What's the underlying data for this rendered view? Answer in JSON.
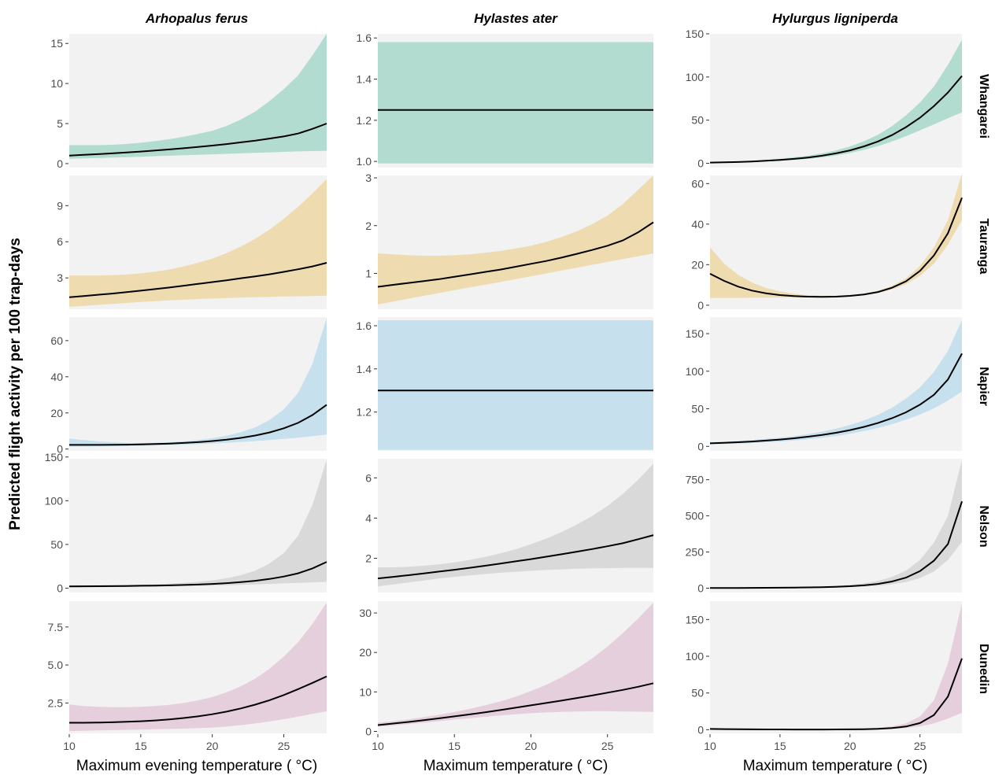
{
  "figure": {
    "ylabel": "Predicted flight activity per  100 trap-days",
    "columns": [
      "Arhopalus ferus",
      "Hylastes ater",
      "Hylurgus ligniperda"
    ],
    "rows": [
      "Whangarei",
      "Tauranga",
      "Napier",
      "Nelson",
      "Dunedin"
    ],
    "xlabels": [
      "Maximum evening temperature ( °C)",
      "Maximum temperature ( °C)",
      "Maximum temperature ( °C)"
    ],
    "row_colors": [
      "#b2dccf",
      "#eedbb0",
      "#c6e0ed",
      "#d9d9d9",
      "#e6cfdc"
    ],
    "panel_background": "#f2f2f2",
    "line_color": "#000000"
  },
  "chart_data": {
    "type": "line",
    "facet": "grid",
    "x": [
      10,
      11,
      12,
      13,
      14,
      15,
      16,
      17,
      18,
      19,
      20,
      21,
      22,
      23,
      24,
      25,
      26,
      27,
      28
    ],
    "xlim": [
      10,
      28
    ],
    "xticks": [
      10,
      15,
      20,
      25
    ],
    "panels": [
      {
        "column": "Arhopalus ferus",
        "row": "Whangarei",
        "ylim": [
          -0.5,
          16.2
        ],
        "yticks": [
          0,
          5,
          10,
          15
        ],
        "fit": [
          1.0,
          1.09,
          1.18,
          1.28,
          1.39,
          1.5,
          1.63,
          1.77,
          1.92,
          2.08,
          2.25,
          2.44,
          2.65,
          2.87,
          3.12,
          3.39,
          3.75,
          4.33,
          5.0
        ],
        "lower": [
          0.6,
          0.65,
          0.7,
          0.75,
          0.8,
          0.86,
          0.92,
          0.98,
          1.05,
          1.1,
          1.16,
          1.22,
          1.28,
          1.34,
          1.4,
          1.46,
          1.52,
          1.56,
          1.6
        ],
        "upper": [
          2.3,
          2.3,
          2.3,
          2.35,
          2.45,
          2.6,
          2.8,
          3.05,
          3.35,
          3.7,
          4.1,
          4.7,
          5.5,
          6.5,
          7.8,
          9.3,
          11.0,
          13.5,
          16.2
        ]
      },
      {
        "column": "Hylastes ater",
        "row": "Whangarei",
        "ylim": [
          0.97,
          1.62
        ],
        "yticks": [
          1.0,
          1.2,
          1.4,
          1.6
        ],
        "fit": [
          1.25,
          1.25,
          1.25,
          1.25,
          1.25,
          1.25,
          1.25,
          1.25,
          1.25,
          1.25,
          1.25,
          1.25,
          1.25,
          1.25,
          1.25,
          1.25,
          1.25,
          1.25,
          1.25
        ],
        "lower": [
          0.99,
          0.99,
          0.99,
          0.99,
          0.99,
          0.99,
          0.99,
          0.99,
          0.99,
          0.99,
          0.99,
          0.99,
          0.99,
          0.99,
          0.99,
          0.99,
          0.99,
          0.99,
          0.99
        ],
        "upper": [
          1.58,
          1.58,
          1.58,
          1.58,
          1.58,
          1.58,
          1.58,
          1.58,
          1.58,
          1.58,
          1.58,
          1.58,
          1.58,
          1.58,
          1.58,
          1.58,
          1.58,
          1.58,
          1.58
        ]
      },
      {
        "column": "Hylurgus ligniperda",
        "row": "Whangarei",
        "ylim": [
          -5,
          150
        ],
        "yticks": [
          0,
          50,
          100,
          150
        ],
        "fit": [
          0.8,
          1.1,
          1.5,
          2.1,
          2.9,
          3.9,
          5.1,
          6.7,
          8.8,
          11.5,
          15.0,
          19.6,
          25.3,
          32.7,
          41.9,
          52.8,
          66.2,
          82.0,
          101.2
        ],
        "lower": [
          0.5,
          0.7,
          1.0,
          1.4,
          2.0,
          2.8,
          3.8,
          5.1,
          6.8,
          9.0,
          11.9,
          15.5,
          19.9,
          25.2,
          31.4,
          38.2,
          45.1,
          52.2,
          59.0
        ],
        "upper": [
          1.2,
          1.6,
          2.2,
          3.0,
          4.0,
          5.3,
          6.9,
          8.9,
          11.5,
          15.0,
          19.5,
          25.5,
          33.0,
          43.0,
          55.5,
          70.5,
          89.0,
          114.0,
          143.0
        ]
      },
      {
        "column": "Arhopalus ferus",
        "row": "Tauranga",
        "ylim": [
          0.4,
          11.5
        ],
        "yticks": [
          3,
          6,
          9
        ],
        "fit": [
          1.4,
          1.5,
          1.6,
          1.7,
          1.82,
          1.94,
          2.07,
          2.2,
          2.35,
          2.5,
          2.65,
          2.8,
          2.97,
          3.13,
          3.3,
          3.5,
          3.72,
          3.95,
          4.25
        ],
        "lower": [
          0.6,
          0.68,
          0.76,
          0.84,
          0.92,
          1.0,
          1.07,
          1.13,
          1.19,
          1.24,
          1.29,
          1.33,
          1.37,
          1.4,
          1.43,
          1.46,
          1.48,
          1.5,
          1.52
        ],
        "upper": [
          3.2,
          3.2,
          3.2,
          3.22,
          3.28,
          3.38,
          3.52,
          3.7,
          3.95,
          4.25,
          4.6,
          5.05,
          5.6,
          6.25,
          7.0,
          7.9,
          8.9,
          10.0,
          11.2
        ]
      },
      {
        "column": "Hylastes ater",
        "row": "Tauranga",
        "ylim": [
          0.25,
          3.05
        ],
        "yticks": [
          1,
          2,
          3
        ],
        "fit": [
          0.72,
          0.76,
          0.8,
          0.84,
          0.88,
          0.93,
          0.98,
          1.03,
          1.08,
          1.14,
          1.2,
          1.26,
          1.33,
          1.41,
          1.49,
          1.58,
          1.69,
          1.86,
          2.07
        ],
        "lower": [
          0.35,
          0.41,
          0.47,
          0.53,
          0.59,
          0.65,
          0.71,
          0.76,
          0.82,
          0.88,
          0.94,
          1.0,
          1.06,
          1.12,
          1.18,
          1.24,
          1.3,
          1.36,
          1.42
        ],
        "upper": [
          1.42,
          1.4,
          1.38,
          1.37,
          1.37,
          1.38,
          1.4,
          1.43,
          1.47,
          1.52,
          1.58,
          1.66,
          1.76,
          1.88,
          2.03,
          2.21,
          2.45,
          2.75,
          3.05
        ]
      },
      {
        "column": "Hylurgus ligniperda",
        "row": "Tauranga",
        "ylim": [
          -2,
          64
        ],
        "yticks": [
          0,
          20,
          40,
          60
        ],
        "fit": [
          15.5,
          12.0,
          9.2,
          7.2,
          5.9,
          5.0,
          4.5,
          4.2,
          4.1,
          4.2,
          4.6,
          5.3,
          6.5,
          8.6,
          11.8,
          16.9,
          24.5,
          35.5,
          53.0
        ],
        "lower": [
          3.5,
          3.6,
          3.6,
          3.7,
          3.7,
          3.8,
          3.8,
          3.8,
          3.8,
          4.0,
          4.3,
          5.0,
          6.0,
          7.8,
          10.3,
          14.5,
          20.5,
          30.0,
          42.0
        ],
        "upper": [
          28.5,
          20.5,
          15.0,
          11.2,
          8.5,
          6.8,
          5.6,
          4.9,
          4.6,
          4.6,
          5.0,
          5.8,
          7.1,
          9.5,
          13.3,
          19.3,
          28.5,
          42.0,
          65.0
        ]
      },
      {
        "column": "Arhopalus ferus",
        "row": "Napier",
        "ylim": [
          -1,
          73
        ],
        "yticks": [
          0,
          20,
          40,
          60
        ],
        "fit": [
          2.3,
          2.3,
          2.3,
          2.35,
          2.45,
          2.6,
          2.8,
          3.05,
          3.4,
          3.85,
          4.45,
          5.2,
          6.2,
          7.5,
          9.2,
          11.5,
          14.5,
          18.8,
          24.5
        ],
        "lower": [
          1.3,
          1.4,
          1.5,
          1.6,
          1.7,
          1.85,
          2.0,
          2.2,
          2.45,
          2.75,
          3.1,
          3.5,
          3.95,
          4.45,
          5.0,
          5.6,
          6.3,
          7.1,
          8.0
        ],
        "upper": [
          5.8,
          5.0,
          4.3,
          3.8,
          3.5,
          3.4,
          3.5,
          3.8,
          4.3,
          5.0,
          6.0,
          7.4,
          9.3,
          12.0,
          16.0,
          22.0,
          31.0,
          47.0,
          72.5
        ]
      },
      {
        "column": "Hylastes ater",
        "row": "Napier",
        "ylim": [
          1.02,
          1.64
        ],
        "yticks": [
          1.2,
          1.4,
          1.6
        ],
        "fit": [
          1.3,
          1.3,
          1.3,
          1.3,
          1.3,
          1.3,
          1.3,
          1.3,
          1.3,
          1.3,
          1.3,
          1.3,
          1.3,
          1.3,
          1.3,
          1.3,
          1.3,
          1.3,
          1.3
        ],
        "lower": [
          1.025,
          1.025,
          1.025,
          1.025,
          1.025,
          1.025,
          1.025,
          1.025,
          1.025,
          1.025,
          1.025,
          1.025,
          1.025,
          1.025,
          1.025,
          1.025,
          1.025,
          1.025,
          1.025
        ],
        "upper": [
          1.625,
          1.625,
          1.625,
          1.625,
          1.625,
          1.625,
          1.625,
          1.625,
          1.625,
          1.625,
          1.625,
          1.625,
          1.625,
          1.625,
          1.625,
          1.625,
          1.625,
          1.625,
          1.625
        ]
      },
      {
        "column": "Hylurgus ligniperda",
        "row": "Napier",
        "ylim": [
          -6,
          172
        ],
        "yticks": [
          0,
          50,
          100,
          150
        ],
        "fit": [
          4.0,
          4.7,
          5.5,
          6.5,
          7.7,
          9.1,
          10.8,
          12.8,
          15.2,
          18.1,
          21.6,
          25.9,
          31.1,
          37.5,
          45.3,
          55.5,
          68.5,
          89.0,
          123.5
        ],
        "lower": [
          2.6,
          3.1,
          3.7,
          4.5,
          5.4,
          6.5,
          7.8,
          9.4,
          11.4,
          13.8,
          16.8,
          20.3,
          24.5,
          29.5,
          35.5,
          42.5,
          50.5,
          61.0,
          73.0
        ],
        "upper": [
          5.5,
          6.3,
          7.3,
          8.5,
          9.9,
          11.6,
          13.7,
          16.3,
          19.5,
          23.5,
          28.5,
          34.5,
          42.0,
          51.5,
          63.5,
          78.5,
          99.0,
          127.0,
          168.0
        ]
      },
      {
        "column": "Arhopalus ferus",
        "row": "Nelson",
        "ylim": [
          -5,
          148
        ],
        "yticks": [
          0,
          50,
          100,
          150
        ],
        "fit": [
          2.0,
          2.1,
          2.2,
          2.3,
          2.5,
          2.7,
          2.9,
          3.2,
          3.6,
          4.1,
          4.8,
          5.7,
          6.9,
          8.4,
          10.5,
          13.3,
          17.0,
          22.5,
          30.0
        ],
        "lower": [
          1.0,
          1.1,
          1.2,
          1.3,
          1.45,
          1.6,
          1.8,
          2.0,
          2.25,
          2.55,
          2.9,
          3.3,
          3.75,
          4.25,
          4.8,
          5.4,
          6.0,
          6.6,
          7.2
        ],
        "upper": [
          3.5,
          3.4,
          3.4,
          3.5,
          3.7,
          4.0,
          4.5,
          5.1,
          6.0,
          7.2,
          8.9,
          11.3,
          14.8,
          20.0,
          28.0,
          40.0,
          60.0,
          95.0,
          147.0
        ]
      },
      {
        "column": "Hylastes ater",
        "row": "Nelson",
        "ylim": [
          0.3,
          6.95
        ],
        "yticks": [
          2,
          4,
          6
        ],
        "fit": [
          1.0,
          1.08,
          1.16,
          1.25,
          1.34,
          1.43,
          1.53,
          1.63,
          1.74,
          1.85,
          1.96,
          2.08,
          2.2,
          2.33,
          2.46,
          2.6,
          2.75,
          2.95,
          3.15
        ],
        "lower": [
          0.6,
          0.7,
          0.8,
          0.9,
          1.0,
          1.08,
          1.15,
          1.22,
          1.28,
          1.33,
          1.38,
          1.42,
          1.45,
          1.48,
          1.5,
          1.51,
          1.52,
          1.52,
          1.52
        ],
        "upper": [
          1.55,
          1.55,
          1.58,
          1.63,
          1.7,
          1.8,
          1.92,
          2.07,
          2.25,
          2.45,
          2.7,
          2.98,
          3.3,
          3.68,
          4.1,
          4.6,
          5.2,
          5.9,
          6.7
        ]
      },
      {
        "column": "Hylurgus ligniperda",
        "row": "Nelson",
        "ylim": [
          -30,
          895
        ],
        "yticks": [
          0,
          250,
          500,
          750
        ],
        "fit": [
          1.0,
          1.2,
          1.5,
          1.9,
          2.4,
          3.1,
          4.0,
          5.3,
          7.1,
          9.7,
          13.5,
          19.5,
          29.5,
          46.0,
          73.0,
          118.0,
          190.0,
          305.0,
          600.0
        ],
        "lower": [
          0.5,
          0.6,
          0.8,
          1.0,
          1.3,
          1.7,
          2.2,
          3.0,
          4.1,
          5.7,
          8.0,
          11.5,
          17.0,
          26.5,
          42.0,
          70.0,
          115.0,
          195.0,
          320.0
        ],
        "upper": [
          2.0,
          2.4,
          2.9,
          3.6,
          4.5,
          5.7,
          7.3,
          9.5,
          12.5,
          17.0,
          23.5,
          33.5,
          50.0,
          77.0,
          122.0,
          195.0,
          315.0,
          500.0,
          885.0
        ]
      },
      {
        "column": "Arhopalus ferus",
        "row": "Dunedin",
        "ylim": [
          0.5,
          9.2
        ],
        "yticks": [
          2.5,
          5.0,
          7.5
        ],
        "fit": [
          1.2,
          1.2,
          1.21,
          1.23,
          1.26,
          1.3,
          1.35,
          1.42,
          1.51,
          1.62,
          1.76,
          1.93,
          2.14,
          2.39,
          2.68,
          3.02,
          3.41,
          3.82,
          4.25
        ],
        "lower": [
          0.65,
          0.67,
          0.69,
          0.71,
          0.73,
          0.75,
          0.77,
          0.79,
          0.81,
          0.84,
          0.88,
          0.95,
          1.04,
          1.15,
          1.28,
          1.43,
          1.6,
          1.78,
          1.95
        ],
        "upper": [
          2.4,
          2.3,
          2.25,
          2.22,
          2.22,
          2.25,
          2.3,
          2.38,
          2.5,
          2.67,
          2.9,
          3.2,
          3.6,
          4.1,
          4.75,
          5.55,
          6.5,
          7.7,
          9.1
        ]
      },
      {
        "column": "Hylastes ater",
        "row": "Dunedin",
        "ylim": [
          -0.5,
          33
        ],
        "yticks": [
          0,
          10,
          20,
          30
        ],
        "fit": [
          1.6,
          2.0,
          2.4,
          2.85,
          3.3,
          3.8,
          4.3,
          4.85,
          5.4,
          6.0,
          6.6,
          7.2,
          7.8,
          8.45,
          9.1,
          9.8,
          10.5,
          11.3,
          12.2
        ],
        "lower": [
          1.2,
          1.5,
          1.85,
          2.2,
          2.6,
          3.0,
          3.35,
          3.7,
          4.05,
          4.35,
          4.6,
          4.8,
          4.95,
          5.05,
          5.1,
          5.1,
          5.05,
          5.0,
          4.95
        ],
        "upper": [
          2.2,
          2.6,
          3.05,
          3.6,
          4.2,
          4.9,
          5.7,
          6.6,
          7.6,
          8.8,
          10.2,
          11.8,
          13.7,
          15.9,
          18.5,
          21.5,
          24.9,
          28.6,
          32.6
        ]
      },
      {
        "column": "Hylurgus ligniperda",
        "row": "Dunedin",
        "ylim": [
          -5,
          175
        ],
        "yticks": [
          0,
          50,
          100,
          150
        ],
        "fit": [
          1.0,
          0.8,
          0.6,
          0.5,
          0.4,
          0.35,
          0.3,
          0.3,
          0.3,
          0.35,
          0.45,
          0.7,
          1.2,
          2.2,
          4.3,
          9.0,
          20.0,
          45.0,
          97.0
        ],
        "lower": [
          0.3,
          0.25,
          0.2,
          0.17,
          0.15,
          0.13,
          0.12,
          0.12,
          0.13,
          0.15,
          0.2,
          0.35,
          0.65,
          1.2,
          2.3,
          4.5,
          8.5,
          15.0,
          23.0
        ],
        "upper": [
          2.5,
          2.0,
          1.6,
          1.3,
          1.1,
          1.0,
          0.9,
          0.9,
          0.9,
          1.0,
          1.2,
          1.7,
          2.6,
          4.5,
          8.5,
          18.0,
          40.0,
          90.0,
          172.0
        ]
      }
    ]
  }
}
